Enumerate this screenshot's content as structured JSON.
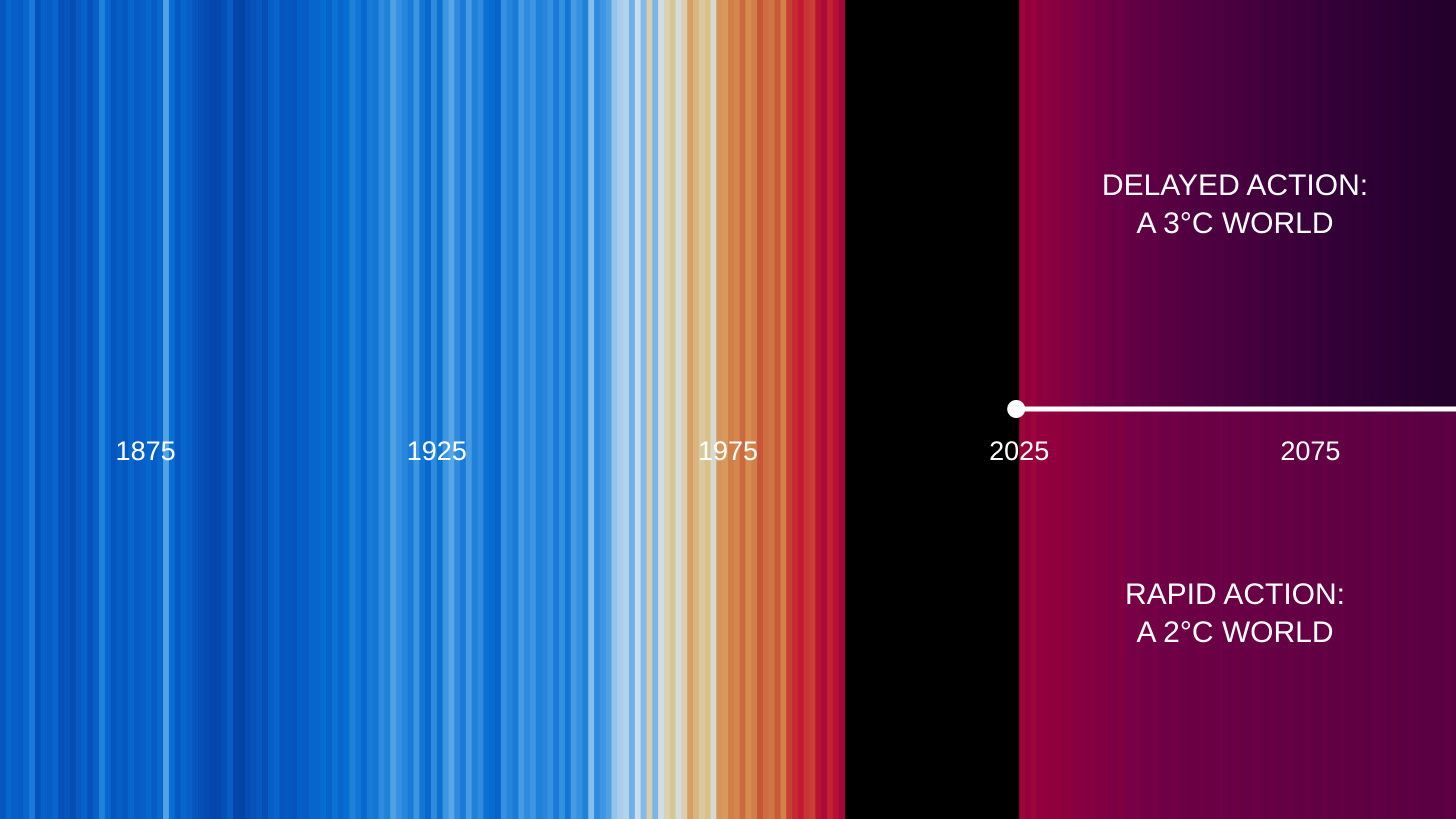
{
  "chart_data": {
    "type": "warming-stripes",
    "x_start": 1850,
    "x_end": 2100,
    "split_year": 2025,
    "ticks": [
      "1875",
      "1925",
      "1975",
      "2025",
      "2075"
    ],
    "tick_values": [
      1875,
      1925,
      1975,
      2025,
      2075
    ],
    "scenarios": [
      {
        "name": "delayed",
        "line1": "DELAYED ACTION:",
        "line2": "A 3°C WORLD"
      },
      {
        "name": "rapid",
        "line1": "RAPID ACTION:",
        "line2": "A 2°C WORLD"
      }
    ],
    "anomaly_range_c": [
      -0.6,
      3.0
    ],
    "historical_anomalies_c": [
      -0.38,
      -0.3,
      -0.34,
      -0.36,
      -0.3,
      -0.2,
      -0.42,
      -0.33,
      -0.35,
      -0.3,
      -0.44,
      -0.4,
      -0.45,
      -0.37,
      -0.32,
      -0.42,
      -0.33,
      -0.18,
      -0.28,
      -0.4,
      -0.34,
      -0.38,
      -0.3,
      -0.36,
      -0.34,
      -0.3,
      -0.35,
      -0.28,
      -0.05,
      -0.25,
      -0.38,
      -0.3,
      -0.34,
      -0.4,
      -0.44,
      -0.46,
      -0.5,
      -0.48,
      -0.44,
      -0.35,
      -0.5,
      -0.52,
      -0.45,
      -0.42,
      -0.38,
      -0.44,
      -0.34,
      -0.3,
      -0.4,
      -0.38,
      -0.4,
      -0.34,
      -0.36,
      -0.3,
      -0.3,
      -0.26,
      -0.32,
      -0.24,
      -0.3,
      -0.25,
      -0.18,
      -0.22,
      -0.28,
      -0.2,
      -0.22,
      -0.14,
      -0.18,
      -0.06,
      -0.12,
      -0.16,
      -0.2,
      -0.1,
      -0.22,
      -0.28,
      -0.14,
      -0.24,
      -0.1,
      -0.04,
      -0.14,
      -0.2,
      -0.08,
      -0.18,
      -0.14,
      -0.24,
      -0.26,
      -0.32,
      -0.12,
      -0.16,
      -0.2,
      -0.08,
      -0.14,
      -0.1,
      -0.18,
      -0.16,
      -0.12,
      -0.2,
      -0.12,
      -0.22,
      -0.08,
      -0.12,
      -0.18,
      0.05,
      -0.14,
      -0.1,
      -0.06,
      0.08,
      0.12,
      0.14,
      0.0,
      0.18,
      0.04,
      0.3,
      0.02,
      0.22,
      0.28,
      0.34,
      0.22,
      0.3,
      0.48,
      0.4,
      0.32,
      0.36,
      0.24,
      0.52,
      0.5,
      0.62,
      0.58,
      0.72,
      0.55,
      0.62,
      0.82,
      0.7,
      0.66,
      0.8,
      0.6,
      0.9,
      0.98,
      1.05,
      0.94,
      0.9,
      1.12,
      1.22,
      1.02,
      1.15,
      1.28
    ],
    "projected_anomalies_c": [
      1.3,
      1.36,
      1.32,
      1.42,
      1.4,
      1.46,
      1.44,
      1.52,
      1.5,
      1.56,
      1.58,
      1.62,
      1.6,
      1.68,
      1.66,
      1.72,
      1.74,
      1.7,
      1.78,
      1.82,
      1.8,
      1.86,
      1.88,
      1.85,
      1.92,
      1.94,
      1.9,
      1.96,
      1.98,
      2.0,
      2.02,
      1.98,
      2.04,
      2.06,
      2.02,
      2.08,
      2.1,
      2.06,
      2.12,
      2.14,
      2.1,
      2.16,
      2.18,
      2.14,
      2.2,
      2.22,
      2.18,
      2.24,
      2.26,
      2.22,
      2.28,
      2.3,
      2.26,
      2.32,
      2.34,
      2.3,
      2.36,
      2.38,
      2.34,
      2.4,
      2.42,
      2.38,
      2.44,
      2.46,
      2.42,
      2.48,
      2.5,
      2.46,
      2.52,
      2.54,
      2.5,
      2.56,
      2.58,
      2.54,
      2.6
    ],
    "projected_spread_c": 0.55
  }
}
